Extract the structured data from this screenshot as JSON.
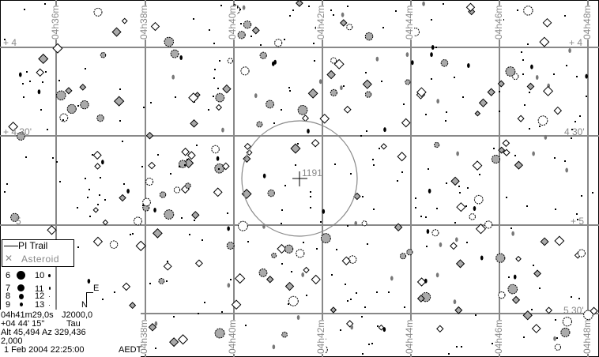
{
  "ra_labels": [
    "04h36m",
    "04h38m",
    "04h40m",
    "04h42m",
    "04h44m",
    "04h46m",
    "04h48m"
  ],
  "dec_labels_left": [
    "+  4",
    "+  4 30'",
    "5"
  ],
  "dec_labels_right": [
    "+  4",
    "4 30'",
    "+  5",
    "5 30'"
  ],
  "target": {
    "label": "1191",
    "circle_color": "#888888"
  },
  "legend": {
    "trail": "PI Trail",
    "asteroid": "Asteroid"
  },
  "magnitudes": [
    "6",
    "7",
    "8",
    "9",
    "10",
    "11",
    "12",
    "13"
  ],
  "compass": {
    "east": "E",
    "north": "N"
  },
  "info": {
    "ra": "04h41m29,0s",
    "epoch": "J2000,0",
    "dec": "+04 44' 15\"",
    "constellation": "Tau",
    "altaz": "Alt 45,494  Az 329,436",
    "fov": "2,000",
    "datetime": "1 Feb 2004 22:25:00",
    "timezone": "AEDT"
  },
  "colors": {
    "grid": "#888888",
    "star": "#000000",
    "star_grey": "#999999"
  }
}
